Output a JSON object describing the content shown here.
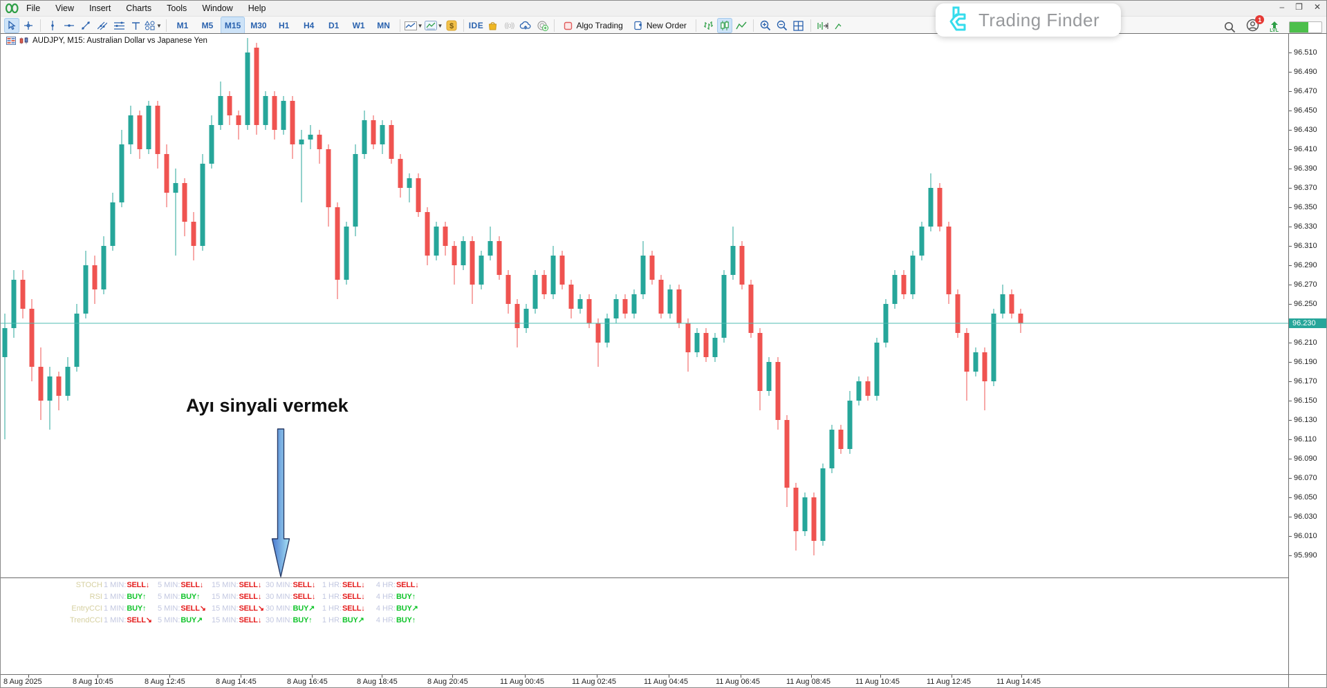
{
  "window": {
    "menus": [
      "File",
      "View",
      "Insert",
      "Charts",
      "Tools",
      "Window",
      "Help"
    ],
    "controls": [
      "minimize",
      "restore",
      "close"
    ]
  },
  "toolbar": {
    "timeframes": [
      "M1",
      "M5",
      "M15",
      "M30",
      "H1",
      "H4",
      "D1",
      "W1",
      "MN"
    ],
    "selected_timeframe": "M15",
    "ide_label": "IDE",
    "algo_trading_label": "Algo Trading",
    "new_order_label": "New Order"
  },
  "brand": {
    "name": "Trading Finder",
    "accent": "#35dcec",
    "notification_count": "1",
    "level_label": "LVL"
  },
  "chart": {
    "symbol_line": "AUDJPY, M15:  Australian Dollar vs Japanese Yen",
    "annotation_text": "Ayı sinyali vermek",
    "current_price_label": "96.230"
  },
  "chart_data": {
    "type": "candlestick",
    "symbol": "AUDJPY",
    "timeframe": "M15",
    "title": "AUDJPY, M15: Australian Dollar vs Japanese Yen",
    "current_price": 96.23,
    "colors": {
      "up": "#26a69a",
      "down": "#ef5350",
      "price_line": "#4fbdb2",
      "price_label_bg": "#26a69a"
    },
    "price_axis": {
      "max": 96.51,
      "min": 95.99,
      "step": 0.02,
      "ticks": [
        "96.510",
        "96.490",
        "96.470",
        "96.450",
        "96.430",
        "96.410",
        "96.390",
        "96.370",
        "96.350",
        "96.330",
        "96.310",
        "96.290",
        "96.270",
        "96.250",
        "96.230",
        "96.210",
        "96.190",
        "96.170",
        "96.150",
        "96.130",
        "96.110",
        "96.090",
        "96.070",
        "96.050",
        "96.030",
        "96.010",
        "95.990"
      ]
    },
    "time_axis": {
      "labels": [
        "8 Aug 2025",
        "8 Aug 10:45",
        "8 Aug 12:45",
        "8 Aug 14:45",
        "8 Aug 16:45",
        "8 Aug 18:45",
        "8 Aug 20:45",
        "11 Aug 00:45",
        "11 Aug 02:45",
        "11 Aug 04:45",
        "11 Aug 06:45",
        "11 Aug 08:45",
        "11 Aug 10:45",
        "11 Aug 12:45",
        "11 Aug 14:45"
      ]
    },
    "candles": [
      [
        96.195,
        96.24,
        96.11,
        96.225
      ],
      [
        96.225,
        96.285,
        96.215,
        96.275
      ],
      [
        96.275,
        96.285,
        96.235,
        96.245
      ],
      [
        96.245,
        96.255,
        96.17,
        96.185
      ],
      [
        96.185,
        96.205,
        96.13,
        96.15
      ],
      [
        96.15,
        96.185,
        96.12,
        96.175
      ],
      [
        96.175,
        96.18,
        96.14,
        96.155
      ],
      [
        96.155,
        96.195,
        96.15,
        96.185
      ],
      [
        96.185,
        96.25,
        96.18,
        96.24
      ],
      [
        96.24,
        96.305,
        96.235,
        96.29
      ],
      [
        96.29,
        96.3,
        96.25,
        96.265
      ],
      [
        96.265,
        96.32,
        96.26,
        96.31
      ],
      [
        96.31,
        96.365,
        96.305,
        96.355
      ],
      [
        96.355,
        96.43,
        96.35,
        96.415
      ],
      [
        96.415,
        96.455,
        96.405,
        96.445
      ],
      [
        96.445,
        96.45,
        96.4,
        96.41
      ],
      [
        96.41,
        96.46,
        96.405,
        96.455
      ],
      [
        96.455,
        96.46,
        96.39,
        96.405
      ],
      [
        96.405,
        96.415,
        96.35,
        96.365
      ],
      [
        96.365,
        96.39,
        96.3,
        96.375
      ],
      [
        96.375,
        96.38,
        96.32,
        96.335
      ],
      [
        96.335,
        96.345,
        96.295,
        96.31
      ],
      [
        96.31,
        96.405,
        96.305,
        96.395
      ],
      [
        96.395,
        96.445,
        96.39,
        96.435
      ],
      [
        96.435,
        96.48,
        96.43,
        96.465
      ],
      [
        96.465,
        96.47,
        96.435,
        96.445
      ],
      [
        96.445,
        96.45,
        96.42,
        96.435
      ],
      [
        96.435,
        96.525,
        96.43,
        96.51
      ],
      [
        96.515,
        96.52,
        96.425,
        96.435
      ],
      [
        96.435,
        96.47,
        96.43,
        96.465
      ],
      [
        96.465,
        96.47,
        96.42,
        96.43
      ],
      [
        96.43,
        96.465,
        96.425,
        96.46
      ],
      [
        96.46,
        96.465,
        96.4,
        96.415
      ],
      [
        96.415,
        96.43,
        96.355,
        96.42
      ],
      [
        96.42,
        96.435,
        96.41,
        96.425
      ],
      [
        96.425,
        96.43,
        96.395,
        96.41
      ],
      [
        96.41,
        96.415,
        96.33,
        96.35
      ],
      [
        96.35,
        96.355,
        96.255,
        96.275
      ],
      [
        96.275,
        96.335,
        96.27,
        96.33
      ],
      [
        96.33,
        96.415,
        96.32,
        96.405
      ],
      [
        96.405,
        96.45,
        96.4,
        96.44
      ],
      [
        96.44,
        96.445,
        96.41,
        96.415
      ],
      [
        96.415,
        96.44,
        96.405,
        96.435
      ],
      [
        96.435,
        96.44,
        96.395,
        96.4
      ],
      [
        96.4,
        96.405,
        96.36,
        96.37
      ],
      [
        96.37,
        96.385,
        96.355,
        96.38
      ],
      [
        96.38,
        96.385,
        96.34,
        96.345
      ],
      [
        96.345,
        96.35,
        96.29,
        96.3
      ],
      [
        96.3,
        96.335,
        96.295,
        96.33
      ],
      [
        96.33,
        96.335,
        96.3,
        96.31
      ],
      [
        96.31,
        96.315,
        96.27,
        96.29
      ],
      [
        96.29,
        96.32,
        96.285,
        96.315
      ],
      [
        96.315,
        96.32,
        96.25,
        96.27
      ],
      [
        96.27,
        96.305,
        96.265,
        96.3
      ],
      [
        96.3,
        96.33,
        96.295,
        96.315
      ],
      [
        96.315,
        96.32,
        96.275,
        96.28
      ],
      [
        96.28,
        96.285,
        96.24,
        96.25
      ],
      [
        96.25,
        96.255,
        96.205,
        96.225
      ],
      [
        96.225,
        96.25,
        96.22,
        96.245
      ],
      [
        96.245,
        96.285,
        96.24,
        96.28
      ],
      [
        96.28,
        96.285,
        96.255,
        96.26
      ],
      [
        96.26,
        96.31,
        96.255,
        96.3
      ],
      [
        96.3,
        96.305,
        96.265,
        96.27
      ],
      [
        96.27,
        96.275,
        96.235,
        96.245
      ],
      [
        96.245,
        96.26,
        96.24,
        96.255
      ],
      [
        96.255,
        96.26,
        96.225,
        96.23
      ],
      [
        96.23,
        96.235,
        96.185,
        96.21
      ],
      [
        96.21,
        96.24,
        96.205,
        96.235
      ],
      [
        96.235,
        96.26,
        96.23,
        96.255
      ],
      [
        96.255,
        96.26,
        96.235,
        96.24
      ],
      [
        96.24,
        96.265,
        96.235,
        96.26
      ],
      [
        96.26,
        96.315,
        96.255,
        96.3
      ],
      [
        96.3,
        96.305,
        96.27,
        96.275
      ],
      [
        96.275,
        96.28,
        96.235,
        96.24
      ],
      [
        96.24,
        96.27,
        96.235,
        96.265
      ],
      [
        96.265,
        96.27,
        96.225,
        96.23
      ],
      [
        96.23,
        96.235,
        96.18,
        96.2
      ],
      [
        96.2,
        96.225,
        96.195,
        96.22
      ],
      [
        96.22,
        96.225,
        96.19,
        96.195
      ],
      [
        96.195,
        96.22,
        96.19,
        96.215
      ],
      [
        96.215,
        96.285,
        96.21,
        96.28
      ],
      [
        96.28,
        96.33,
        96.275,
        96.31
      ],
      [
        96.31,
        96.315,
        96.265,
        96.27
      ],
      [
        96.27,
        96.275,
        96.215,
        96.22
      ],
      [
        96.22,
        96.225,
        96.14,
        96.16
      ],
      [
        96.16,
        96.195,
        96.155,
        96.19
      ],
      [
        96.19,
        96.195,
        96.12,
        96.13
      ],
      [
        96.13,
        96.135,
        96.04,
        96.06
      ],
      [
        96.06,
        96.065,
        95.995,
        96.015
      ],
      [
        96.015,
        96.055,
        96.01,
        96.05
      ],
      [
        96.05,
        96.055,
        95.99,
        96.005
      ],
      [
        96.005,
        96.085,
        96.0,
        96.08
      ],
      [
        96.08,
        96.125,
        96.075,
        96.12
      ],
      [
        96.12,
        96.125,
        96.095,
        96.1
      ],
      [
        96.1,
        96.16,
        96.095,
        96.15
      ],
      [
        96.15,
        96.175,
        96.145,
        96.17
      ],
      [
        96.17,
        96.175,
        96.15,
        96.155
      ],
      [
        96.155,
        96.215,
        96.15,
        96.21
      ],
      [
        96.21,
        96.255,
        96.205,
        96.25
      ],
      [
        96.25,
        96.285,
        96.245,
        96.28
      ],
      [
        96.28,
        96.285,
        96.255,
        96.26
      ],
      [
        96.26,
        96.305,
        96.255,
        96.3
      ],
      [
        96.3,
        96.335,
        96.295,
        96.33
      ],
      [
        96.33,
        96.385,
        96.325,
        96.37
      ],
      [
        96.37,
        96.375,
        96.325,
        96.33
      ],
      [
        96.33,
        96.335,
        96.25,
        96.26
      ],
      [
        96.26,
        96.265,
        96.215,
        96.22
      ],
      [
        96.22,
        96.225,
        96.15,
        96.18
      ],
      [
        96.18,
        96.205,
        96.175,
        96.2
      ],
      [
        96.2,
        96.205,
        96.14,
        96.17
      ],
      [
        96.17,
        96.245,
        96.165,
        96.24
      ],
      [
        96.24,
        96.27,
        96.235,
        96.26
      ],
      [
        96.26,
        96.265,
        96.235,
        96.24
      ],
      [
        96.24,
        96.245,
        96.22,
        96.23
      ]
    ]
  },
  "signal_panel": {
    "sell_color": "#e41c1c",
    "buy_color": "#12c42c",
    "rows": [
      {
        "name": "STOCH",
        "cells": [
          {
            "tf": "1 MIN:",
            "a": "SELL",
            "ar": "↓"
          },
          {
            "tf": "5 MIN:",
            "a": "SELL",
            "ar": "↓"
          },
          {
            "tf": "15 MIN:",
            "a": "SELL",
            "ar": "↓"
          },
          {
            "tf": "30 MIN:",
            "a": "SELL",
            "ar": "↓"
          },
          {
            "tf": "1 HR:",
            "a": "SELL",
            "ar": "↓"
          },
          {
            "tf": "4 HR:",
            "a": "SELL",
            "ar": "↓"
          }
        ]
      },
      {
        "name": "RSI",
        "cells": [
          {
            "tf": "1 MIN:",
            "a": "BUY",
            "ar": "↑"
          },
          {
            "tf": "5 MIN:",
            "a": "BUY",
            "ar": "↑"
          },
          {
            "tf": "15 MIN:",
            "a": "SELL",
            "ar": "↓"
          },
          {
            "tf": "30 MIN:",
            "a": "SELL",
            "ar": "↓"
          },
          {
            "tf": "1 HR:",
            "a": "SELL",
            "ar": "↓"
          },
          {
            "tf": "4 HR:",
            "a": "BUY",
            "ar": "↑"
          }
        ]
      },
      {
        "name": "EntryCCI",
        "cells": [
          {
            "tf": "1 MIN:",
            "a": "BUY",
            "ar": "↑"
          },
          {
            "tf": "5 MIN:",
            "a": "SELL",
            "ar": "↘"
          },
          {
            "tf": "15 MIN:",
            "a": "SELL",
            "ar": "↘"
          },
          {
            "tf": "30 MIN:",
            "a": "BUY",
            "ar": "↗"
          },
          {
            "tf": "1 HR:",
            "a": "SELL",
            "ar": "↓"
          },
          {
            "tf": "4 HR:",
            "a": "BUY",
            "ar": "↗"
          }
        ]
      },
      {
        "name": "TrendCCI",
        "cells": [
          {
            "tf": "1 MIN:",
            "a": "SELL",
            "ar": "↘"
          },
          {
            "tf": "5 MIN:",
            "a": "BUY",
            "ar": "↗"
          },
          {
            "tf": "15 MIN:",
            "a": "SELL",
            "ar": "↓"
          },
          {
            "tf": "30 MIN:",
            "a": "BUY",
            "ar": "↑"
          },
          {
            "tf": "1 HR:",
            "a": "BUY",
            "ar": "↗"
          },
          {
            "tf": "4 HR:",
            "a": "BUY",
            "ar": "↑"
          }
        ]
      }
    ]
  }
}
